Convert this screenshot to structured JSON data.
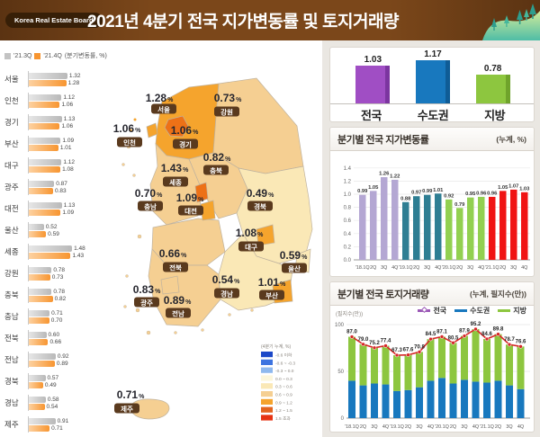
{
  "header": {
    "brand": "Korea Real Estate Board",
    "title": "2021년 4분기 전국 지가변동률 및 토지거래량"
  },
  "map": {
    "legend_title": "(4분기 누계, %)",
    "legend": [
      {
        "label": "-0.6 이하",
        "color": "#1B48C8"
      },
      {
        "label": "-0.6 ~ -0.3",
        "color": "#3D74E0"
      },
      {
        "label": "-0.3 ~ 0.0",
        "color": "#8FB9EE"
      },
      {
        "label": "0.0 ~ 0.3",
        "color": "#FCF6DB"
      },
      {
        "label": "0.3 ~ 0.6",
        "color": "#FAE8B6"
      },
      {
        "label": "0.6 ~ 0.9",
        "color": "#F5CF92"
      },
      {
        "label": "0.9 ~ 1.2",
        "color": "#F5A42D"
      },
      {
        "label": "1.2 ~ 1.5",
        "color": "#E2641E"
      },
      {
        "label": "1.5 초과",
        "color": "#E63312"
      }
    ],
    "regions": [
      {
        "id": "gyeonggi",
        "name": "경기",
        "value": "1.06",
        "color": "#F5A42D"
      },
      {
        "id": "gangwon",
        "name": "강원",
        "value": "0.73",
        "color": "#F5CF92"
      },
      {
        "id": "chungbuk",
        "name": "충북",
        "value": "0.82",
        "color": "#F5CF92"
      },
      {
        "id": "chungnam",
        "name": "충남",
        "value": "0.70",
        "color": "#F5CF92"
      },
      {
        "id": "gyeongbuk",
        "name": "경북",
        "value": "0.49",
        "color": "#FAE8B6"
      },
      {
        "id": "jeonbuk",
        "name": "전북",
        "value": "0.66",
        "color": "#F5CF92"
      },
      {
        "id": "jeonnam",
        "name": "전남",
        "value": "0.89",
        "color": "#F5CF92"
      },
      {
        "id": "gyeongnam",
        "name": "경남",
        "value": "0.54",
        "color": "#FAE8B6"
      },
      {
        "id": "seoul",
        "name": "서울",
        "value": "1.28",
        "color": "#ED7117"
      },
      {
        "id": "incheon",
        "name": "인천",
        "value": "1.06",
        "color": "#F5A42D"
      },
      {
        "id": "sejong",
        "name": "세종",
        "value": "1.43",
        "color": "#ED7117"
      },
      {
        "id": "daejeon",
        "name": "대전",
        "value": "1.09",
        "color": "#F5A42D"
      },
      {
        "id": "daegu",
        "name": "대구",
        "value": "1.08",
        "color": "#F5A42D"
      },
      {
        "id": "ulsan",
        "name": "울산",
        "value": "0.59",
        "color": "#FAE8B6"
      },
      {
        "id": "busan",
        "name": "부산",
        "value": "1.01",
        "color": "#F5A42D"
      },
      {
        "id": "gwangju",
        "name": "광주",
        "value": "0.83",
        "color": "#F5CF92"
      },
      {
        "id": "jeju",
        "name": "제주",
        "value": "0.71",
        "color": "#F5CF92"
      }
    ]
  },
  "chart_data": [
    {
      "id": "region_comparison",
      "type": "bar",
      "orientation": "horizontal",
      "note": "(분기변동률, %)",
      "categories": [
        "서울",
        "인천",
        "경기",
        "부산",
        "대구",
        "광주",
        "대전",
        "울산",
        "세종",
        "강원",
        "충북",
        "충남",
        "전북",
        "전남",
        "경북",
        "경남",
        "제주"
      ],
      "series": [
        {
          "name": "'21.3Q",
          "color": "#c3c3c3",
          "values": [
            1.32,
            1.12,
            1.13,
            1.09,
            1.12,
            0.87,
            1.13,
            0.52,
            1.48,
            0.78,
            0.78,
            0.71,
            0.6,
            0.92,
            0.57,
            0.58,
            0.91
          ]
        },
        {
          "name": "'21.4Q",
          "color": "#F79530",
          "values": [
            1.28,
            1.06,
            1.06,
            1.01,
            1.08,
            0.83,
            1.09,
            0.59,
            1.43,
            0.73,
            0.82,
            0.7,
            0.66,
            0.89,
            0.49,
            0.54,
            0.71
          ]
        }
      ]
    },
    {
      "id": "summary",
      "type": "bar",
      "categories": [
        "전국",
        "수도권",
        "지방"
      ],
      "values": [
        1.03,
        1.17,
        0.78
      ],
      "colors": [
        "#A04EC4",
        "#1878BE",
        "#8DC63F"
      ],
      "side_colors": [
        "#7C35A0",
        "#0F5C96",
        "#6FA32B"
      ]
    },
    {
      "id": "rate_trend",
      "type": "bar",
      "title": "분기별 전국 지가변동률",
      "note": "(누계, %)",
      "categories": [
        "'18.1Q",
        "2Q",
        "3Q",
        "4Q",
        "'19.1Q",
        "2Q",
        "3Q",
        "4Q",
        "'20.1Q",
        "2Q",
        "3Q",
        "4Q",
        "'21.1Q",
        "2Q",
        "3Q",
        "4Q"
      ],
      "values": [
        0.99,
        1.05,
        1.26,
        1.22,
        0.88,
        0.97,
        0.99,
        1.01,
        0.92,
        0.79,
        0.95,
        0.96,
        0.96,
        1.05,
        1.07,
        1.03
      ],
      "year_colors": [
        "#B4A7D3",
        "#2E7E93",
        "#92D050",
        "#F01414"
      ],
      "ylim": [
        0,
        1.4
      ],
      "yticks": [
        0,
        0.2,
        0.4,
        0.6,
        0.8,
        1.0,
        1.2,
        1.4
      ]
    },
    {
      "id": "volume_trend",
      "type": "stacked-bar-line",
      "title": "분기별 전국 토지거래량",
      "note": "(누계, 필지수(만))",
      "ylabel": "(필지수(만))",
      "categories": [
        "'18.1Q",
        "2Q",
        "3Q",
        "4Q",
        "'19.1Q",
        "2Q",
        "3Q",
        "4Q",
        "'20.1Q",
        "2Q",
        "3Q",
        "4Q",
        "'21.1Q",
        "2Q",
        "3Q",
        "4Q"
      ],
      "line": {
        "name": "전국",
        "color": "#D62828",
        "legend_color": "#9B59B6",
        "values": [
          87.0,
          79.0,
          75.2,
          77.4,
          67.3,
          67.6,
          70.8,
          84.5,
          87.1,
          80.5,
          87.9,
          95.2,
          84.6,
          89.8,
          78.7,
          76.6
        ]
      },
      "stacks": [
        {
          "name": "수도권",
          "color": "#1878BE",
          "values": [
            40,
            35,
            37,
            36,
            29,
            30,
            33,
            40,
            43,
            37,
            41,
            39,
            38,
            40,
            35,
            31
          ]
        },
        {
          "name": "지방",
          "color": "#8DC63F",
          "values": [
            47.0,
            44.0,
            38.2,
            41.4,
            38.3,
            37.6,
            37.8,
            44.5,
            44.1,
            43.5,
            46.9,
            56.2,
            46.6,
            49.8,
            43.7,
            45.6
          ]
        }
      ],
      "ylim": [
        0,
        100
      ],
      "yticks": [
        0,
        50,
        100
      ]
    }
  ]
}
